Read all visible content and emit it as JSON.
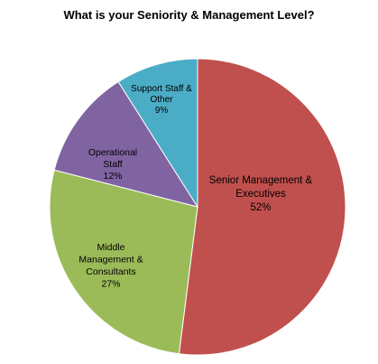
{
  "chart_data": {
    "type": "pie",
    "title": "What is your  Seniority & Management Level?",
    "slices": [
      {
        "name": "Senior Management & Executives",
        "lines": [
          "Senior Management &",
          "Executives"
        ],
        "value": 52,
        "pct_label": "52%",
        "color": "#c0504d"
      },
      {
        "name": "Middle Management & Consultants",
        "lines": [
          "Middle",
          "Management &",
          "Consultants"
        ],
        "value": 27,
        "pct_label": "27%",
        "color": "#9bbb59"
      },
      {
        "name": "Operational Staff",
        "lines": [
          "Operational",
          "Staff"
        ],
        "value": 12,
        "pct_label": "12%",
        "color": "#8064a2"
      },
      {
        "name": "Support Staff & Other",
        "lines": [
          "Support Staff &",
          "Other"
        ],
        "value": 9,
        "pct_label": "9%",
        "color": "#4bacc6"
      }
    ],
    "start": "12 o'clock",
    "direction": "clockwise",
    "legend": "none"
  }
}
